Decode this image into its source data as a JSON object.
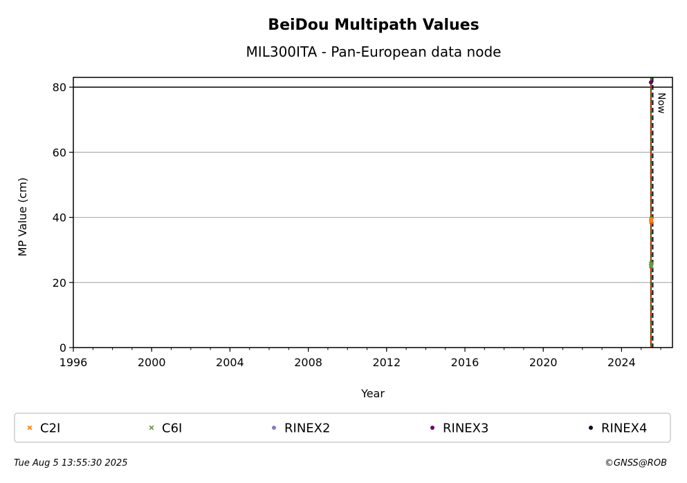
{
  "chart_data": {
    "type": "scatter",
    "title": "BeiDou Multipath Values",
    "subtitle": "MIL300ITA - Pan-European data node",
    "xlabel": "Year",
    "ylabel": "MP Value (cm)",
    "xlim": [
      1996,
      2026.6
    ],
    "ylim": [
      0,
      83
    ],
    "xticks": [
      1996,
      2000,
      2004,
      2008,
      2012,
      2016,
      2020,
      2024
    ],
    "yticks": [
      0,
      20,
      40,
      60,
      80
    ],
    "grid": "horizontal",
    "threshold_line": {
      "y": 80,
      "color": "#000000"
    },
    "now_line": {
      "x": 2025.59,
      "label": "Now",
      "color": "#000000"
    },
    "rinex_change_line": {
      "x": 2025.5,
      "color": "#ff0000"
    },
    "legend_position": "bottom",
    "series": [
      {
        "name": "C2I",
        "marker": "x",
        "color": "#ff7f0e",
        "points": [
          [
            2025.5,
            39.6
          ],
          [
            2025.5,
            39.0
          ],
          [
            2025.51,
            38.6
          ],
          [
            2025.52,
            39.3
          ]
        ]
      },
      {
        "name": "C6I",
        "marker": "x",
        "color": "#6a9a48",
        "points": [
          [
            2025.5,
            25.8
          ],
          [
            2025.5,
            25.2
          ],
          [
            2025.51,
            24.9
          ],
          [
            2025.52,
            25.5
          ]
        ]
      },
      {
        "name": "RINEX2",
        "marker": "dot",
        "color": "#7f7fbf",
        "points": []
      },
      {
        "name": "RINEX3",
        "marker": "dot",
        "color": "#6a006a",
        "points": [
          [
            2025.5,
            81.5
          ]
        ]
      },
      {
        "name": "RINEX4",
        "marker": "dot",
        "color": "#1a0022",
        "points": []
      }
    ]
  },
  "footer": {
    "timestamp": "Tue Aug  5 13:55:30 2025",
    "copyright": "©GNSS@ROB"
  }
}
